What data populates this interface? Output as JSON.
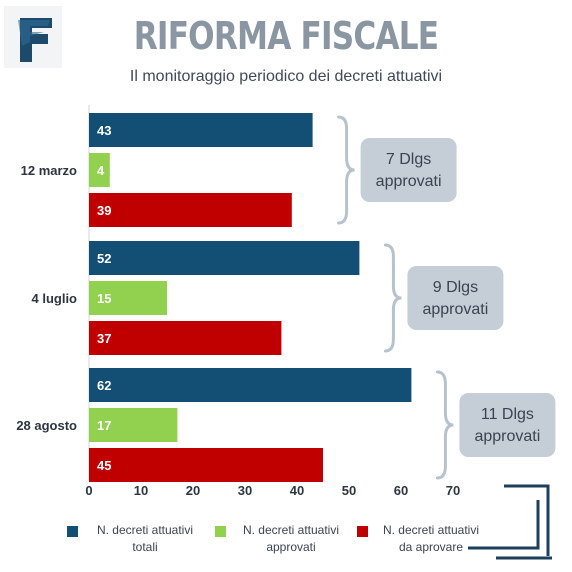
{
  "header": {
    "title": "RIFORMA FISCALE",
    "subtitle": "Il monitoraggio periodico dei decreti attuativi"
  },
  "colors": {
    "totali": "#134f75",
    "approvati": "#92d050",
    "da_approvare": "#c00000",
    "callout_bg": "#c5ced6",
    "title": "#8b96a3"
  },
  "callouts": [
    {
      "line1": "7 Dlgs",
      "line2": "approvati"
    },
    {
      "line1": "9 Dlgs",
      "line2": "approvati"
    },
    {
      "line1": "11 Dlgs",
      "line2": "approvati"
    }
  ],
  "legend": [
    {
      "line1": "N. decreti attuativi",
      "line2": "totali"
    },
    {
      "line1": "N. decreti attuativi",
      "line2": "approvati"
    },
    {
      "line1": "N. decreti attuativi",
      "line2": "da aprovare"
    }
  ],
  "chart_data": {
    "type": "bar",
    "orientation": "horizontal",
    "categories": [
      "12 marzo",
      "4 luglio",
      "28 agosto"
    ],
    "series": [
      {
        "name": "N. decreti attuativi totali",
        "values": [
          43,
          52,
          62
        ]
      },
      {
        "name": "N. decreti attuativi approvati",
        "values": [
          4,
          15,
          17
        ]
      },
      {
        "name": "N. decreti attuativi da aprovare",
        "values": [
          39,
          37,
          45
        ]
      }
    ],
    "xticks": [
      0,
      10,
      20,
      30,
      40,
      50,
      60,
      70
    ],
    "xlim": [
      0,
      70
    ],
    "grid": false,
    "legend_position": "bottom"
  }
}
